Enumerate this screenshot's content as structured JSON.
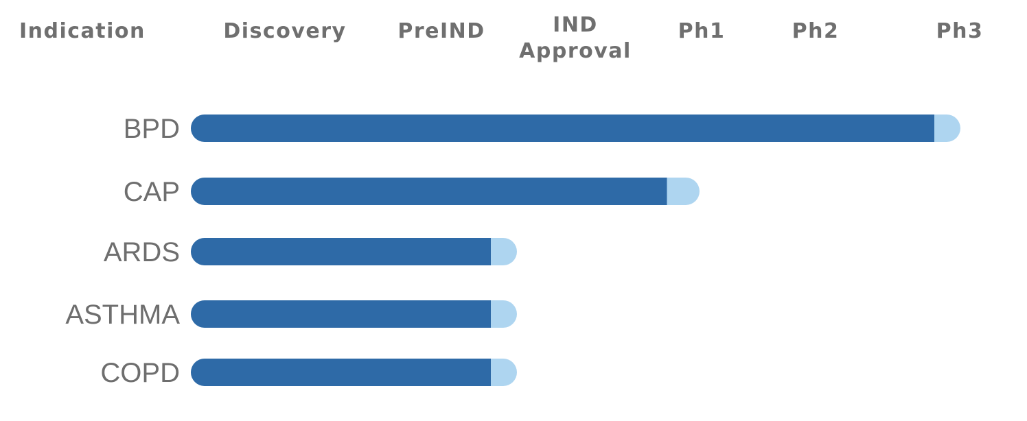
{
  "chart_data": {
    "type": "bar",
    "orientation": "horizontal",
    "title": "",
    "x_axis_header": "Indication",
    "stages": [
      "Discovery",
      "PreIND",
      "IND Approval",
      "Ph1",
      "Ph2",
      "Ph3"
    ],
    "stage_labels": [
      {
        "lines": [
          "Discovery"
        ]
      },
      {
        "lines": [
          "PreIND"
        ]
      },
      {
        "lines": [
          "IND",
          "Approval"
        ]
      },
      {
        "lines": [
          "Ph1"
        ]
      },
      {
        "lines": [
          "Ph2"
        ]
      },
      {
        "lines": [
          "Ph3"
        ]
      }
    ],
    "categories": [
      "BPD",
      "CAP",
      "ARDS",
      "ASTHMA",
      "COPD"
    ],
    "values": [
      5.9,
      3.9,
      2.5,
      2.5,
      2.5
    ],
    "solid_values": [
      5.7,
      3.65,
      2.3,
      2.3,
      2.3
    ],
    "xlim": [
      0,
      6
    ],
    "colors": {
      "bar": "#2e6aa7",
      "bar_tip": "#aed5f0",
      "header": "#6f6f6f",
      "category": "#6e6e6e"
    },
    "grid": false,
    "legend": "none"
  }
}
